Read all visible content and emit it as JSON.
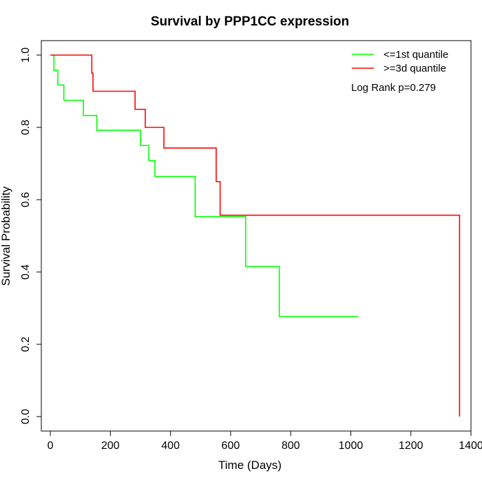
{
  "chart_data": {
    "type": "line",
    "title": "Survival by PPP1CC expression",
    "xlabel": "Time (Days)",
    "ylabel": "Survival Probability",
    "xlim": [
      -30,
      1400
    ],
    "ylim": [
      -0.04,
      1.04
    ],
    "xticks": [
      0,
      200,
      400,
      600,
      800,
      1000,
      1200,
      1400
    ],
    "yticks": [
      0.0,
      0.2,
      0.4,
      0.6,
      0.8,
      1.0
    ],
    "xtick_labels": [
      "0",
      "200",
      "400",
      "600",
      "800",
      "1000",
      "1200",
      "1400"
    ],
    "ytick_labels": [
      "0.0",
      "0.2",
      "0.4",
      "0.6",
      "0.8",
      "1.0"
    ],
    "grid": false,
    "legend_position": "top-right",
    "annotation": "Log Rank p=0.279",
    "series": [
      {
        "name": "<=1st quantile",
        "color": "#00ff00",
        "step": true,
        "x": [
          5,
          12,
          25,
          45,
          110,
          155,
          300,
          328,
          348,
          482,
          650,
          762,
          1025
        ],
        "y": [
          1.0,
          0.958,
          0.917,
          0.875,
          0.833,
          0.792,
          0.75,
          0.708,
          0.664,
          0.553,
          0.415,
          0.277,
          0.277
        ]
      },
      {
        "name": ">=3d quantile",
        "color": "#ff0000",
        "step": true,
        "x": [
          0,
          138,
          142,
          282,
          316,
          378,
          552,
          565,
          1362,
          1362
        ],
        "y": [
          1.0,
          0.95,
          0.9,
          0.85,
          0.8,
          0.743,
          0.65,
          0.557,
          0.557,
          0.0
        ]
      }
    ]
  }
}
